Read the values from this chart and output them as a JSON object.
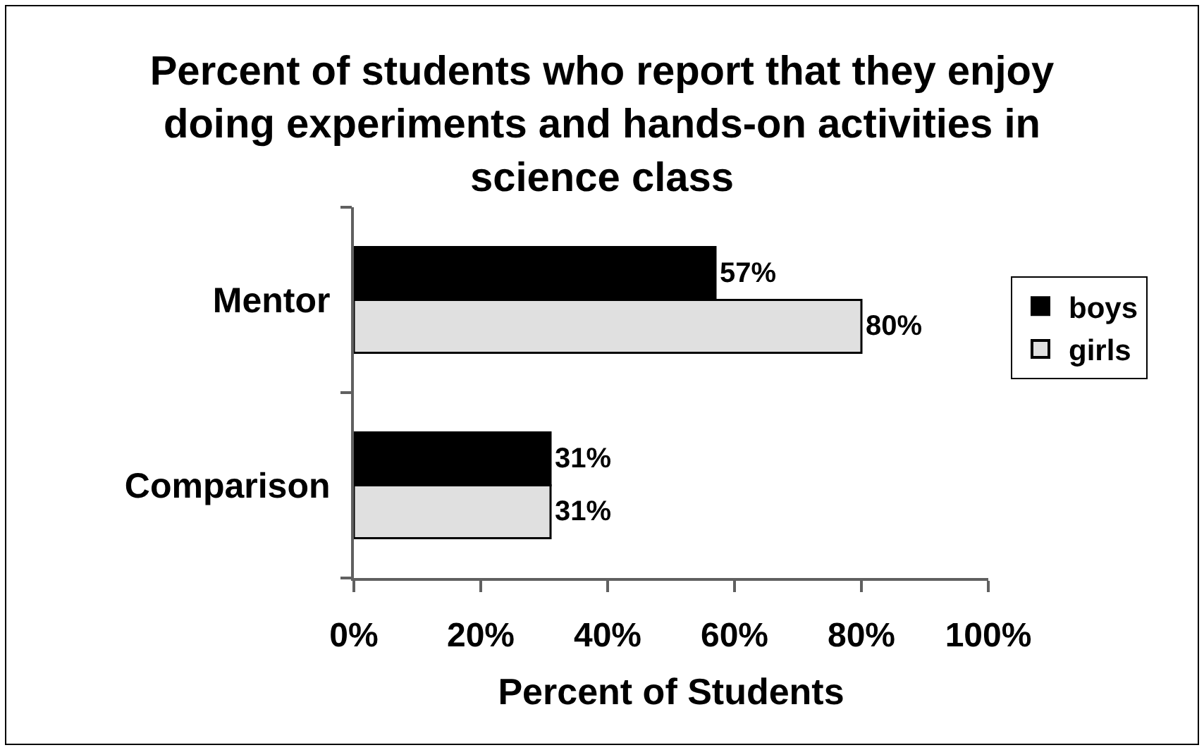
{
  "chart_data": {
    "type": "bar",
    "orientation": "horizontal",
    "title": "Percent of students who report that they enjoy doing experiments and hands-on activities in science class",
    "xlabel": "Percent of Students",
    "categories": [
      "Mentor",
      "Comparison"
    ],
    "series": [
      {
        "name": "boys",
        "color": "#000000",
        "values": [
          57,
          31
        ],
        "value_labels": [
          "57%",
          "31%"
        ]
      },
      {
        "name": "girls",
        "color": "#e0e0e0",
        "values": [
          80,
          31
        ],
        "value_labels": [
          "80%",
          "31%"
        ]
      }
    ],
    "xlim": [
      0,
      100
    ],
    "xticks": [
      {
        "value": 0,
        "label": "0%"
      },
      {
        "value": 20,
        "label": "20%"
      },
      {
        "value": 40,
        "label": "40%"
      },
      {
        "value": 60,
        "label": "60%"
      },
      {
        "value": 80,
        "label": "80%"
      },
      {
        "value": 100,
        "label": "100%"
      }
    ],
    "legend": "right"
  }
}
